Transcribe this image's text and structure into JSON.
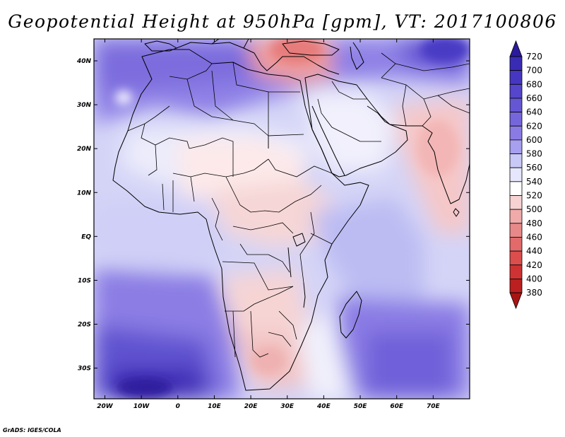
{
  "title": "Geopotential Height at 950hPa [gpm], VT: 2017100806",
  "credit": "GrADS: IGES/COLA",
  "map": {
    "lon_range": [
      -23,
      80
    ],
    "lat_range": [
      -37,
      45
    ],
    "x_ticks": [
      {
        "value": -20,
        "label": "20W"
      },
      {
        "value": -10,
        "label": "10W"
      },
      {
        "value": 0,
        "label": "0"
      },
      {
        "value": 10,
        "label": "10E"
      },
      {
        "value": 20,
        "label": "20E"
      },
      {
        "value": 30,
        "label": "30E"
      },
      {
        "value": 40,
        "label": "40E"
      },
      {
        "value": 50,
        "label": "50E"
      },
      {
        "value": 60,
        "label": "60E"
      },
      {
        "value": 70,
        "label": "70E"
      }
    ],
    "y_ticks": [
      {
        "value": 40,
        "label": "40N"
      },
      {
        "value": 30,
        "label": "30N"
      },
      {
        "value": 20,
        "label": "20N"
      },
      {
        "value": 10,
        "label": "10N"
      },
      {
        "value": 0,
        "label": "EQ"
      },
      {
        "value": -10,
        "label": "10S"
      },
      {
        "value": -20,
        "label": "20S"
      },
      {
        "value": -30,
        "label": "30S"
      }
    ]
  },
  "colorbar": {
    "levels": [
      "720",
      "700",
      "680",
      "660",
      "640",
      "620",
      "600",
      "580",
      "560",
      "540",
      "520",
      "500",
      "480",
      "460",
      "440",
      "420",
      "400",
      "380"
    ],
    "colors": [
      "#2b1a9c",
      "#3a2bb5",
      "#4637c2",
      "#5546cc",
      "#6557d4",
      "#7666dc",
      "#8a7be4",
      "#a79ff0",
      "#c9c9f7",
      "#e6e6fc",
      "#ffffff",
      "#f7d2d2",
      "#f0aaaa",
      "#e88989",
      "#e26a6a",
      "#dc4d4d",
      "#cf3232",
      "#bb1f1f",
      "#a81414"
    ]
  }
}
